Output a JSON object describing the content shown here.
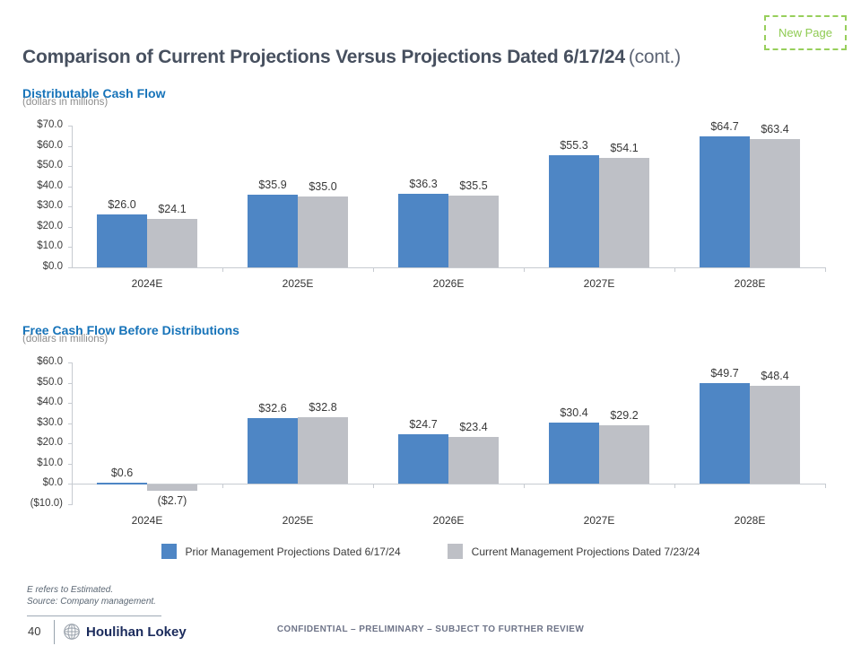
{
  "header": {
    "title_main": "Comparison of Current Projections Versus Projections Dated 6/17/24",
    "title_suffix": "(cont.)",
    "new_page_label": "New Page"
  },
  "chart_data": [
    {
      "type": "bar",
      "title": "Distributable Cash Flow",
      "subtitle": "(dollars in millions)",
      "categories": [
        "2024E",
        "2025E",
        "2026E",
        "2027E",
        "2028E"
      ],
      "series": [
        {
          "name": "Prior Management Projections Dated 6/17/24",
          "color": "#4E86C5",
          "values": [
            26.0,
            35.9,
            36.3,
            55.3,
            64.7
          ],
          "labels": [
            "$26.0",
            "$35.9",
            "$36.3",
            "$55.3",
            "$64.7"
          ]
        },
        {
          "name": "Current Management Projections Dated 7/23/24",
          "color": "#BEC0C6",
          "values": [
            24.1,
            35.0,
            35.5,
            54.1,
            63.4
          ],
          "labels": [
            "$24.1",
            "$35.0",
            "$35.5",
            "$54.1",
            "$63.4"
          ]
        }
      ],
      "ylim": [
        0,
        70
      ],
      "ytick_step": 10,
      "ytick_labels": [
        "$70.0",
        "$60.0",
        "$50.0",
        "$40.0",
        "$30.0",
        "$20.0",
        "$10.0",
        "$0.0"
      ],
      "grid": false,
      "legend_position": "shared-bottom"
    },
    {
      "type": "bar",
      "title": "Free Cash Flow Before Distributions",
      "subtitle": "(dollars in millions)",
      "categories": [
        "2024E",
        "2025E",
        "2026E",
        "2027E",
        "2028E"
      ],
      "series": [
        {
          "name": "Prior Management Projections Dated 6/17/24",
          "color": "#4E86C5",
          "values": [
            0.6,
            32.6,
            24.7,
            30.4,
            49.7
          ],
          "labels": [
            "$0.6",
            "$32.6",
            "$24.7",
            "$30.4",
            "$49.7"
          ]
        },
        {
          "name": "Current Management Projections Dated 7/23/24",
          "color": "#BEC0C6",
          "values": [
            -2.7,
            32.8,
            23.4,
            29.2,
            48.4
          ],
          "labels": [
            "($2.7)",
            "$32.8",
            "$23.4",
            "$29.2",
            "$48.4"
          ]
        }
      ],
      "ylim": [
        -10,
        60
      ],
      "ytick_step": 10,
      "ytick_labels": [
        "$60.0",
        "$50.0",
        "$40.0",
        "$30.0",
        "$20.0",
        "$10.0",
        "$0.0",
        "($10.0)"
      ],
      "grid": false,
      "legend_position": "shared-bottom"
    }
  ],
  "legend": {
    "items": [
      {
        "label": "Prior Management Projections Dated 6/17/24",
        "color": "#4E86C5"
      },
      {
        "label": "Current Management Projections Dated 7/23/24",
        "color": "#BEC0C6"
      }
    ]
  },
  "footnotes": {
    "line1": "E refers to Estimated.",
    "line2": "Source: Company management."
  },
  "footer": {
    "page_number": "40",
    "brand_name": "Houlihan Lokey",
    "confidential": "CONFIDENTIAL – PRELIMINARY – SUBJECT TO FURTHER REVIEW"
  },
  "colors": {
    "series_blue": "#4E86C5",
    "series_gray": "#BEC0C6",
    "section_title_blue": "#1673B9",
    "new_page_green": "#8FCB52",
    "title_slate": "#47505F",
    "brand_navy": "#1B2B5C"
  }
}
